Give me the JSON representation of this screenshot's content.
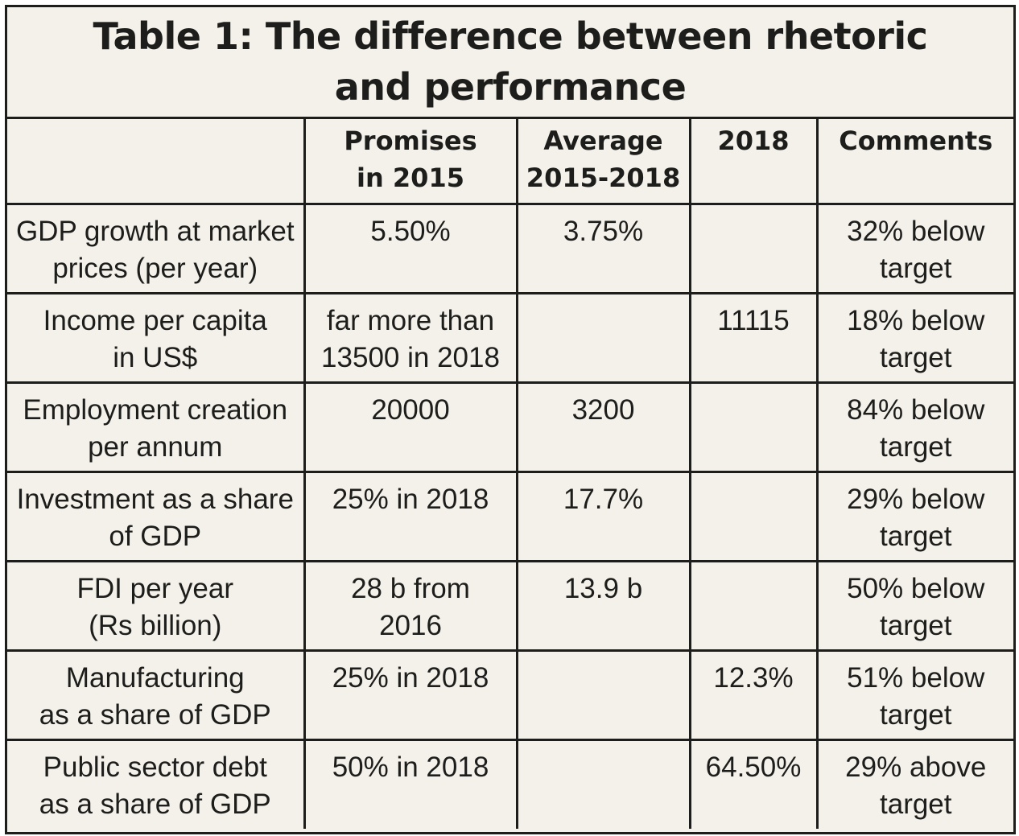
{
  "title": "Table 1: The difference between rhetoric\nand performance",
  "columns": [
    "",
    "Promises\nin 2015",
    "Average\n2015-2018",
    "2018",
    "Comments"
  ],
  "rows": [
    {
      "indicator": "GDP growth at market\nprices (per year)",
      "promise": "5.50%",
      "average": "3.75%",
      "y2018": "",
      "comment": "32% below\ntarget"
    },
    {
      "indicator": "Income per capita\nin US$",
      "promise": "far more than\n13500 in 2018",
      "average": "",
      "y2018": "11115",
      "comment": "18% below\ntarget"
    },
    {
      "indicator": "Employment creation\nper annum",
      "promise": "20000",
      "average": "3200",
      "y2018": "",
      "comment": "84% below\ntarget"
    },
    {
      "indicator": "Investment as a share\nof GDP",
      "promise": "25% in 2018",
      "average": "17.7%",
      "y2018": "",
      "comment": "29% below\ntarget"
    },
    {
      "indicator": "FDI per year\n(Rs billion)",
      "promise": "28 b from\n2016",
      "average": "13.9 b",
      "y2018": "",
      "comment": "50% below\ntarget"
    },
    {
      "indicator": "Manufacturing\nas a share of GDP",
      "promise": "25% in 2018",
      "average": "",
      "y2018": "12.3%",
      "comment": "51% below\ntarget"
    },
    {
      "indicator": "Public sector debt\nas a share of GDP",
      "promise": "50% in 2018",
      "average": "",
      "y2018": "64.50%",
      "comment": "29% above\ntarget"
    }
  ]
}
